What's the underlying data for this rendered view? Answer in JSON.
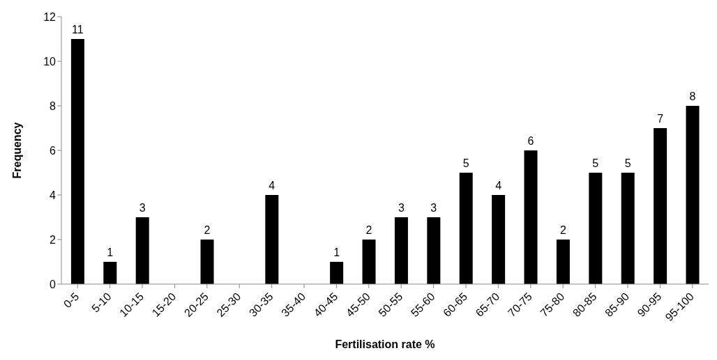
{
  "chart_data": {
    "type": "bar",
    "xlabel": "Fertilisation rate %",
    "ylabel": "Frequency",
    "categories": [
      "0-5",
      "5-10",
      "10-15",
      "15-20",
      "20-25",
      "25-30",
      "30-35",
      "35-40",
      "40-45",
      "45-50",
      "50-55",
      "55-60",
      "60-65",
      "65-70",
      "70-75",
      "75-80",
      "80-85",
      "85-90",
      "90-95",
      "95-100"
    ],
    "values": [
      11,
      1,
      3,
      0,
      2,
      0,
      4,
      0,
      1,
      2,
      3,
      3,
      5,
      4,
      6,
      2,
      5,
      5,
      7,
      8
    ],
    "value_labels": [
      "11",
      "1",
      "3",
      null,
      "2",
      null,
      "4",
      null,
      "1",
      "2",
      "3",
      "3",
      "5",
      "4",
      "6",
      "2",
      "5",
      "5",
      "7",
      "8"
    ],
    "color": "#000000",
    "ylim": [
      0,
      12
    ],
    "yticks": [
      0,
      2,
      4,
      6,
      8,
      10,
      12
    ],
    "grid": false,
    "legend": false
  }
}
